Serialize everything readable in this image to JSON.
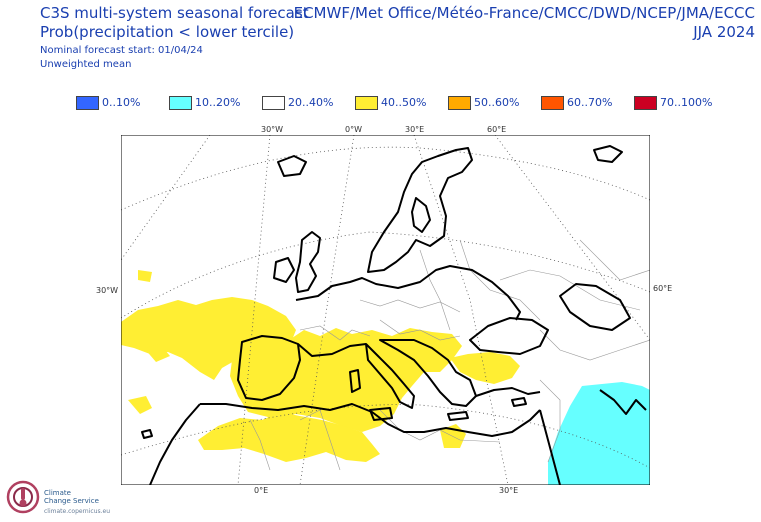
{
  "header": {
    "title": "C3S multi-system seasonal forecast",
    "variable": "Prob(precipitation < lower tercile)",
    "start": "Nominal forecast start: 01/04/24",
    "weighting": "Unweighted mean",
    "centres": "ECMWF/Met Office/Météo-France/CMCC/DWD/NCEP/JMA/ECCC",
    "season": "JJA 2024"
  },
  "legend": [
    {
      "label": "0..10%",
      "color": "#3366ff"
    },
    {
      "label": "10..20%",
      "color": "#66ffff"
    },
    {
      "label": "20..40%",
      "color": "#ffffff"
    },
    {
      "label": "40..50%",
      "color": "#ffee33"
    },
    {
      "label": "50..60%",
      "color": "#ffaa00"
    },
    {
      "label": "60..70%",
      "color": "#ff5500"
    },
    {
      "label": "70..100%",
      "color": "#cc0022"
    }
  ],
  "map": {
    "top_lon_labels": [
      "30°W",
      "0°W",
      "30°E",
      "60°E"
    ],
    "bottom_lon_labels": [
      "0°E",
      "30°E"
    ],
    "left_lat_label": "30°W",
    "right_lat_label": "60°E"
  },
  "logo": {
    "name_line1": "Climate",
    "name_line2": "Change Service",
    "url": "climate.copernicus.eu"
  }
}
